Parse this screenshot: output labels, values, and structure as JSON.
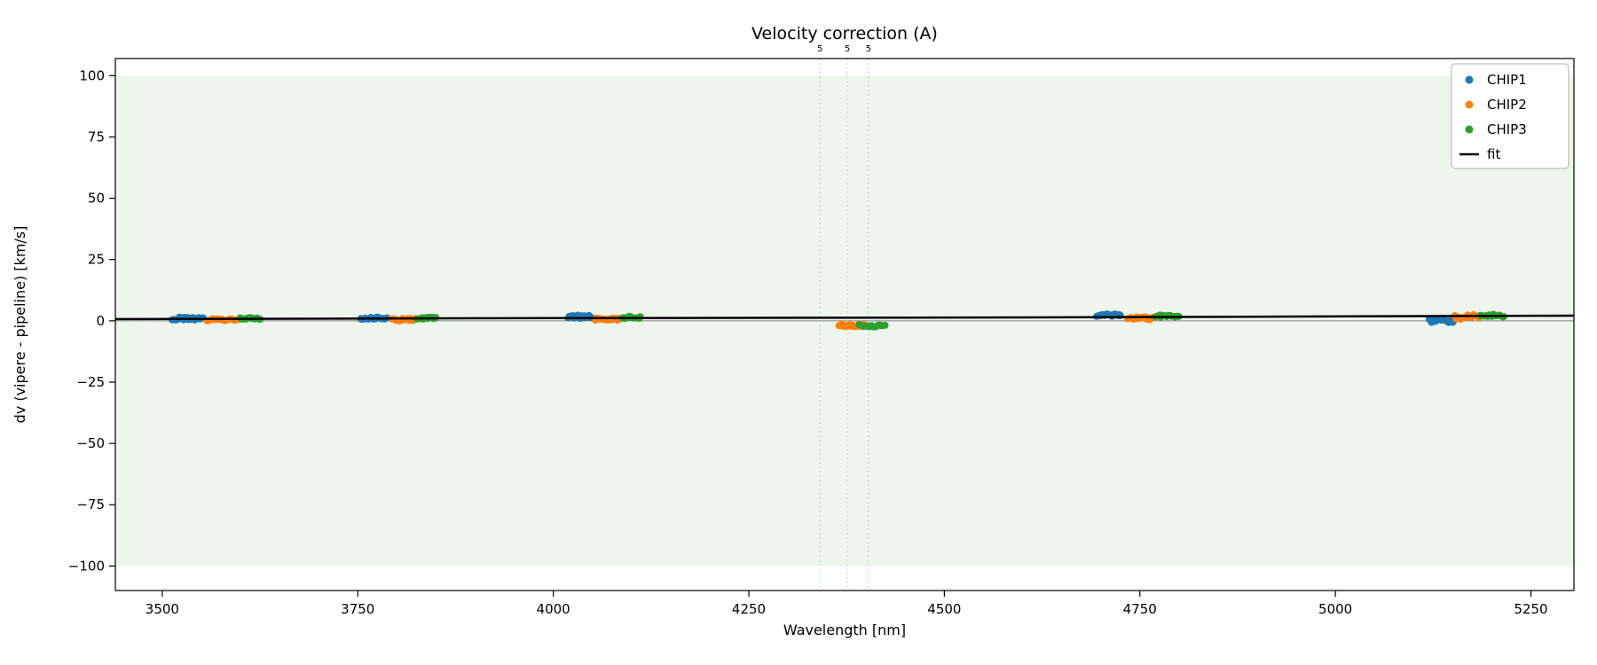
{
  "title": "Velocity correction (A)",
  "chart_data": {
    "type": "scatter",
    "title": "Velocity correction (A)",
    "xlabel": "Wavelength [nm]",
    "ylabel": "dv (vipere - pipeline) [km/s]",
    "xlim": [
      3440,
      5305
    ],
    "ylim": [
      -110,
      107
    ],
    "xticks": [
      3500,
      3750,
      4000,
      4250,
      4500,
      4750,
      5000,
      5250
    ],
    "yticks": [
      -100,
      -75,
      -50,
      -25,
      0,
      25,
      50,
      75,
      100
    ],
    "band": {
      "ymin": -100,
      "ymax": 100,
      "color": "#eef5ed"
    },
    "zero_line": {
      "y": 0,
      "color": "#7f7f7f"
    },
    "vlines": [
      {
        "x": 4341,
        "color": "#8ec6dd",
        "label": "5"
      },
      {
        "x": 4376,
        "color": "#ffb477",
        "label": "5"
      },
      {
        "x": 4403,
        "color": "#8fce8a",
        "label": "5"
      }
    ],
    "fit": {
      "label": "fit",
      "color": "#000000",
      "x": [
        3440,
        4000,
        4600,
        5305
      ],
      "y": [
        0.7,
        1.1,
        1.4,
        2.1
      ]
    },
    "series": [
      {
        "name": "CHIP1",
        "color": "#1f77b4",
        "clusters": [
          {
            "x0": 3513,
            "x1": 3552,
            "y": 0.9,
            "spread": 0.6,
            "n": 20
          },
          {
            "x0": 3753,
            "x1": 3787,
            "y": 1.0,
            "spread": 0.5,
            "n": 18
          },
          {
            "x0": 4019,
            "x1": 4049,
            "y": 1.6,
            "spread": 0.7,
            "n": 16
          },
          {
            "x0": 4695,
            "x1": 4726,
            "y": 2.3,
            "spread": 0.5,
            "n": 16
          },
          {
            "x0": 5120,
            "x1": 5152,
            "y": 0.2,
            "spread": 0.9,
            "n": 18
          }
        ]
      },
      {
        "name": "CHIP2",
        "color": "#ff7f0e",
        "clusters": [
          {
            "x0": 3558,
            "x1": 3597,
            "y": 0.4,
            "spread": 0.5,
            "n": 18
          },
          {
            "x0": 3794,
            "x1": 3824,
            "y": 0.5,
            "spread": 0.5,
            "n": 16
          },
          {
            "x0": 4053,
            "x1": 4086,
            "y": 0.7,
            "spread": 0.5,
            "n": 16
          },
          {
            "x0": 4365,
            "x1": 4398,
            "y": -1.8,
            "spread": 0.6,
            "n": 16
          },
          {
            "x0": 4735,
            "x1": 4768,
            "y": 1.0,
            "spread": 0.6,
            "n": 16
          },
          {
            "x0": 5153,
            "x1": 5183,
            "y": 1.6,
            "spread": 1.0,
            "n": 16
          }
        ]
      },
      {
        "name": "CHIP3",
        "color": "#2ca02c",
        "clusters": [
          {
            "x0": 3600,
            "x1": 3625,
            "y": 0.9,
            "spread": 0.4,
            "n": 12
          },
          {
            "x0": 3826,
            "x1": 3850,
            "y": 1.1,
            "spread": 0.4,
            "n": 12
          },
          {
            "x0": 4088,
            "x1": 4112,
            "y": 1.4,
            "spread": 0.5,
            "n": 12
          },
          {
            "x0": 4392,
            "x1": 4424,
            "y": -2.0,
            "spread": 0.5,
            "n": 14
          },
          {
            "x0": 4770,
            "x1": 4800,
            "y": 1.9,
            "spread": 0.5,
            "n": 14
          },
          {
            "x0": 5186,
            "x1": 5215,
            "y": 2.2,
            "spread": 0.6,
            "n": 14
          }
        ]
      }
    ],
    "legend": [
      {
        "label": "CHIP1",
        "color": "#1f77b4",
        "marker": "dot"
      },
      {
        "label": "CHIP2",
        "color": "#ff7f0e",
        "marker": "dot"
      },
      {
        "label": "CHIP3",
        "color": "#2ca02c",
        "marker": "dot"
      },
      {
        "label": "fit",
        "color": "#000000",
        "marker": "line"
      }
    ],
    "legend_position": "upper right",
    "grid": false
  }
}
